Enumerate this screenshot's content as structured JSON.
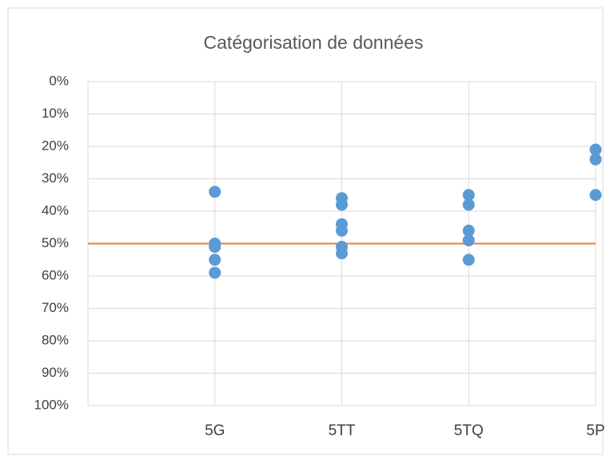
{
  "chart_data": {
    "type": "scatter",
    "title": "Catégorisation de données",
    "series": [
      {
        "color": "#5b9bd5",
        "x": [
          1,
          1,
          1,
          1,
          1,
          2,
          2,
          2,
          2,
          2,
          2,
          3,
          3,
          3,
          3,
          3,
          4,
          4,
          4
        ],
        "values": [
          34,
          50,
          51,
          55,
          59,
          36,
          38,
          44,
          46,
          51,
          53,
          35,
          38,
          46,
          49,
          55,
          21,
          24,
          35
        ]
      }
    ],
    "reference_line": {
      "value": 50,
      "color": "#ed7d31"
    },
    "xlim": [
      0,
      4
    ],
    "xticks": [
      {
        "value": 1,
        "label": "5G"
      },
      {
        "value": 2,
        "label": "5TT"
      },
      {
        "value": 3,
        "label": "5TQ"
      },
      {
        "value": 4,
        "label": "5P"
      }
    ],
    "ylim": [
      0,
      100
    ],
    "y_reversed": true,
    "yticks": [
      {
        "value": 0,
        "label": "0%"
      },
      {
        "value": 10,
        "label": "10%"
      },
      {
        "value": 20,
        "label": "20%"
      },
      {
        "value": 30,
        "label": "30%"
      },
      {
        "value": 40,
        "label": "40%"
      },
      {
        "value": 50,
        "label": "50%"
      },
      {
        "value": 60,
        "label": "60%"
      },
      {
        "value": 70,
        "label": "70%"
      },
      {
        "value": 80,
        "label": "80%"
      },
      {
        "value": 90,
        "label": "90%"
      },
      {
        "value": 100,
        "label": "100%"
      }
    ],
    "grid": true
  }
}
